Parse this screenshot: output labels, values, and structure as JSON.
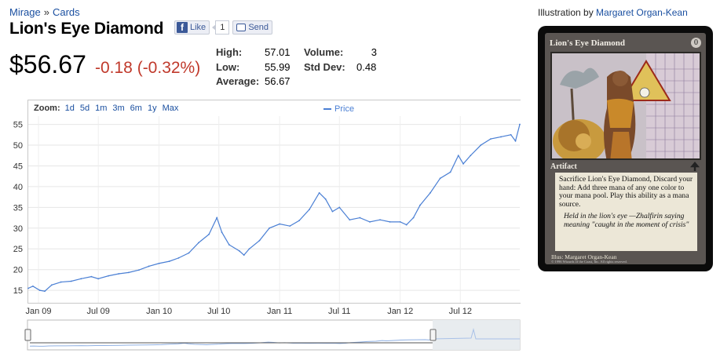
{
  "breadcrumb": {
    "set": "Mirage",
    "separator": "»",
    "category": "Cards"
  },
  "title": "Lion's Eye Diamond",
  "social": {
    "like_label": "Like",
    "like_count": "1",
    "send_label": "Send"
  },
  "quote": {
    "price": "$56.67",
    "change": "-0.18 (-0.32%)",
    "stats": {
      "high_label": "High:",
      "high": "57.01",
      "low_label": "Low:",
      "low": "55.99",
      "average_label": "Average:",
      "average": "56.67",
      "volume_label": "Volume:",
      "volume": "3",
      "stddev_label": "Std Dev:",
      "stddev": "0.48"
    }
  },
  "zoom": {
    "label": "Zoom:",
    "options": [
      "1d",
      "5d",
      "1m",
      "3m",
      "6m",
      "1y",
      "Max"
    ]
  },
  "chart_data": {
    "type": "line",
    "legend_position": "top-center",
    "grid": true,
    "ylim": [
      12,
      57
    ],
    "yticks": [
      15,
      20,
      25,
      30,
      35,
      40,
      45,
      50,
      55
    ],
    "x_range": [
      "2008-12-01",
      "2012-12-28"
    ],
    "xticks": [
      {
        "label": "Jan 09",
        "date": "2009-01-01"
      },
      {
        "label": "Jul 09",
        "date": "2009-07-01"
      },
      {
        "label": "Jan 10",
        "date": "2010-01-01"
      },
      {
        "label": "Jul 10",
        "date": "2010-07-01"
      },
      {
        "label": "Jan 11",
        "date": "2011-01-01"
      },
      {
        "label": "Jul 11",
        "date": "2011-07-01"
      },
      {
        "label": "Jan 12",
        "date": "2012-01-01"
      },
      {
        "label": "Jul 12",
        "date": "2012-07-01"
      }
    ],
    "series": [
      {
        "name": "Price",
        "color": "#4a7fd4",
        "points": [
          [
            "2008-12-01",
            15.5
          ],
          [
            "2008-12-15",
            16.0
          ],
          [
            "2009-01-05",
            15.0
          ],
          [
            "2009-01-20",
            14.8
          ],
          [
            "2009-02-10",
            16.3
          ],
          [
            "2009-03-10",
            17.0
          ],
          [
            "2009-04-10",
            17.2
          ],
          [
            "2009-05-10",
            17.8
          ],
          [
            "2009-06-10",
            18.3
          ],
          [
            "2009-07-01",
            17.8
          ],
          [
            "2009-08-01",
            18.5
          ],
          [
            "2009-09-01",
            19.0
          ],
          [
            "2009-10-01",
            19.3
          ],
          [
            "2009-11-01",
            19.9
          ],
          [
            "2009-12-01",
            20.8
          ],
          [
            "2010-01-01",
            21.5
          ],
          [
            "2010-02-01",
            22.0
          ],
          [
            "2010-03-01",
            22.8
          ],
          [
            "2010-04-01",
            24.0
          ],
          [
            "2010-05-01",
            26.5
          ],
          [
            "2010-06-01",
            28.5
          ],
          [
            "2010-06-25",
            32.5
          ],
          [
            "2010-07-10",
            29.0
          ],
          [
            "2010-08-01",
            26.0
          ],
          [
            "2010-09-01",
            24.5
          ],
          [
            "2010-09-15",
            23.5
          ],
          [
            "2010-10-01",
            25.0
          ],
          [
            "2010-11-01",
            27.0
          ],
          [
            "2010-12-01",
            30.0
          ],
          [
            "2011-01-01",
            31.0
          ],
          [
            "2011-02-01",
            30.5
          ],
          [
            "2011-03-01",
            31.8
          ],
          [
            "2011-04-01",
            34.5
          ],
          [
            "2011-05-01",
            38.5
          ],
          [
            "2011-05-20",
            37.0
          ],
          [
            "2011-06-10",
            34.0
          ],
          [
            "2011-07-01",
            35.0
          ],
          [
            "2011-08-01",
            32.0
          ],
          [
            "2011-09-01",
            32.5
          ],
          [
            "2011-10-01",
            31.5
          ],
          [
            "2011-11-01",
            32.0
          ],
          [
            "2011-12-01",
            31.5
          ],
          [
            "2012-01-01",
            31.5
          ],
          [
            "2012-01-20",
            30.8
          ],
          [
            "2012-02-10",
            32.5
          ],
          [
            "2012-03-01",
            35.5
          ],
          [
            "2012-04-01",
            38.5
          ],
          [
            "2012-05-01",
            42.0
          ],
          [
            "2012-06-01",
            43.5
          ],
          [
            "2012-06-25",
            47.5
          ],
          [
            "2012-07-10",
            45.5
          ],
          [
            "2012-08-01",
            47.5
          ],
          [
            "2012-09-01",
            50.0
          ],
          [
            "2012-10-01",
            51.5
          ],
          [
            "2012-11-01",
            52.0
          ],
          [
            "2012-12-01",
            52.5
          ],
          [
            "2012-12-15",
            51.0
          ],
          [
            "2012-12-28",
            55.0
          ]
        ]
      }
    ]
  },
  "illustration": {
    "prefix": "Illustration by",
    "artist": "Margaret Organ-Kean"
  },
  "card": {
    "name": "Lion's Eye Diamond",
    "mana_cost": "0",
    "type": "Artifact",
    "rules_text": "Sacrifice Lion's Eye Diamond, Discard your hand: Add three mana of any one color to your mana pool. Play this ability as a mana source.",
    "flavor": "Held in the lion's eye —Zhalfirin saying meaning \"caught in the moment of crisis\"",
    "illus": "Illus: Margaret Organ-Kean",
    "copyright": "© 1996 Wizards of the Coast, Inc. All rights reserved."
  }
}
